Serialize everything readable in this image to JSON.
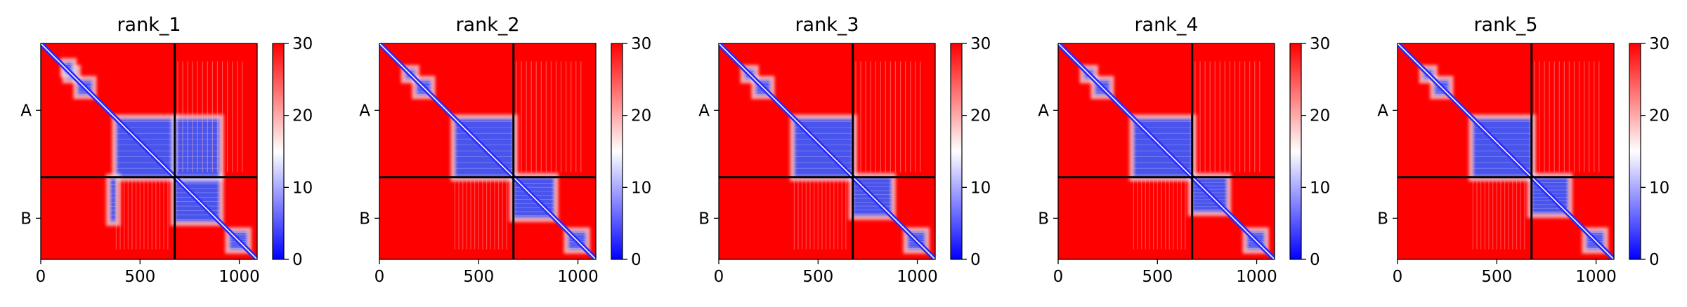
{
  "figure": {
    "colormap": {
      "name": "bwr",
      "low": "#0000ff",
      "mid": "#ffffff",
      "high": "#ff0000"
    },
    "seq_length": 1090,
    "chain_boundary": 675
  },
  "chart_data": [
    {
      "type": "heatmap",
      "title": "rank_1",
      "xlim": [
        0,
        1090
      ],
      "x_ticks": [
        0,
        500,
        1000
      ],
      "x_tick_labels": [
        "0",
        "500",
        "1000"
      ],
      "y_tick_labels": [
        "A",
        "B"
      ],
      "chain_boundary": 675,
      "colorbar": {
        "range": [
          0,
          30
        ],
        "ticks": [
          0,
          10,
          20,
          30
        ],
        "tick_labels": [
          "0",
          "10",
          "20",
          "30"
        ]
      },
      "blue_blocks": [
        [
          130,
          180,
          130,
          180
        ],
        [
          185,
          260,
          185,
          260
        ],
        [
          380,
          675,
          380,
          675
        ],
        [
          675,
          900,
          675,
          900
        ],
        [
          95,
          150,
          120,
          160
        ],
        [
          680,
          900,
          350,
          380
        ],
        [
          380,
          675,
          680,
          900
        ],
        [
          950,
          1040,
          950,
          1040
        ]
      ]
    },
    {
      "type": "heatmap",
      "title": "rank_2",
      "xlim": [
        0,
        1090
      ],
      "x_ticks": [
        0,
        500,
        1000
      ],
      "x_tick_labels": [
        "0",
        "500",
        "1000"
      ],
      "y_tick_labels": [
        "A",
        "B"
      ],
      "chain_boundary": 675,
      "colorbar": {
        "range": [
          0,
          30
        ],
        "ticks": [
          0,
          10,
          20,
          30
        ],
        "tick_labels": [
          "0",
          "10",
          "20",
          "30"
        ]
      },
      "blue_blocks": [
        [
          130,
          180,
          130,
          180
        ],
        [
          185,
          260,
          185,
          260
        ],
        [
          380,
          675,
          380,
          675
        ],
        [
          675,
          880,
          675,
          880
        ],
        [
          950,
          1040,
          950,
          1040
        ]
      ]
    },
    {
      "type": "heatmap",
      "title": "rank_3",
      "xlim": [
        0,
        1090
      ],
      "x_ticks": [
        0,
        500,
        1000
      ],
      "x_tick_labels": [
        "0",
        "500",
        "1000"
      ],
      "y_tick_labels": [
        "A",
        "B"
      ],
      "chain_boundary": 675,
      "colorbar": {
        "range": [
          0,
          30
        ],
        "ticks": [
          0,
          10,
          20,
          30
        ],
        "tick_labels": [
          "0",
          "10",
          "20",
          "30"
        ]
      },
      "blue_blocks": [
        [
          130,
          180,
          130,
          180
        ],
        [
          185,
          260,
          185,
          260
        ],
        [
          380,
          675,
          380,
          675
        ],
        [
          675,
          870,
          675,
          870
        ],
        [
          950,
          1040,
          950,
          1040
        ]
      ]
    },
    {
      "type": "heatmap",
      "title": "rank_4",
      "xlim": [
        0,
        1090
      ],
      "x_ticks": [
        0,
        500,
        1000
      ],
      "x_tick_labels": [
        "0",
        "500",
        "1000"
      ],
      "y_tick_labels": [
        "A",
        "B"
      ],
      "chain_boundary": 675,
      "colorbar": {
        "range": [
          0,
          30
        ],
        "ticks": [
          0,
          10,
          20,
          30
        ],
        "tick_labels": [
          "0",
          "10",
          "20",
          "30"
        ]
      },
      "blue_blocks": [
        [
          130,
          180,
          130,
          180
        ],
        [
          185,
          260,
          185,
          260
        ],
        [
          380,
          675,
          380,
          675
        ],
        [
          675,
          850,
          675,
          850
        ],
        [
          950,
          1040,
          950,
          1040
        ]
      ]
    },
    {
      "type": "heatmap",
      "title": "rank_5",
      "xlim": [
        0,
        1090
      ],
      "x_ticks": [
        0,
        500,
        1000
      ],
      "x_tick_labels": [
        "0",
        "500",
        "1000"
      ],
      "y_tick_labels": [
        "A",
        "B"
      ],
      "chain_boundary": 675,
      "colorbar": {
        "range": [
          0,
          30
        ],
        "ticks": [
          0,
          10,
          20,
          30
        ],
        "tick_labels": [
          "0",
          "10",
          "20",
          "30"
        ]
      },
      "blue_blocks": [
        [
          130,
          180,
          130,
          180
        ],
        [
          185,
          260,
          185,
          260
        ],
        [
          380,
          675,
          380,
          675
        ],
        [
          675,
          860,
          675,
          860
        ],
        [
          950,
          1040,
          950,
          1040
        ]
      ]
    }
  ]
}
